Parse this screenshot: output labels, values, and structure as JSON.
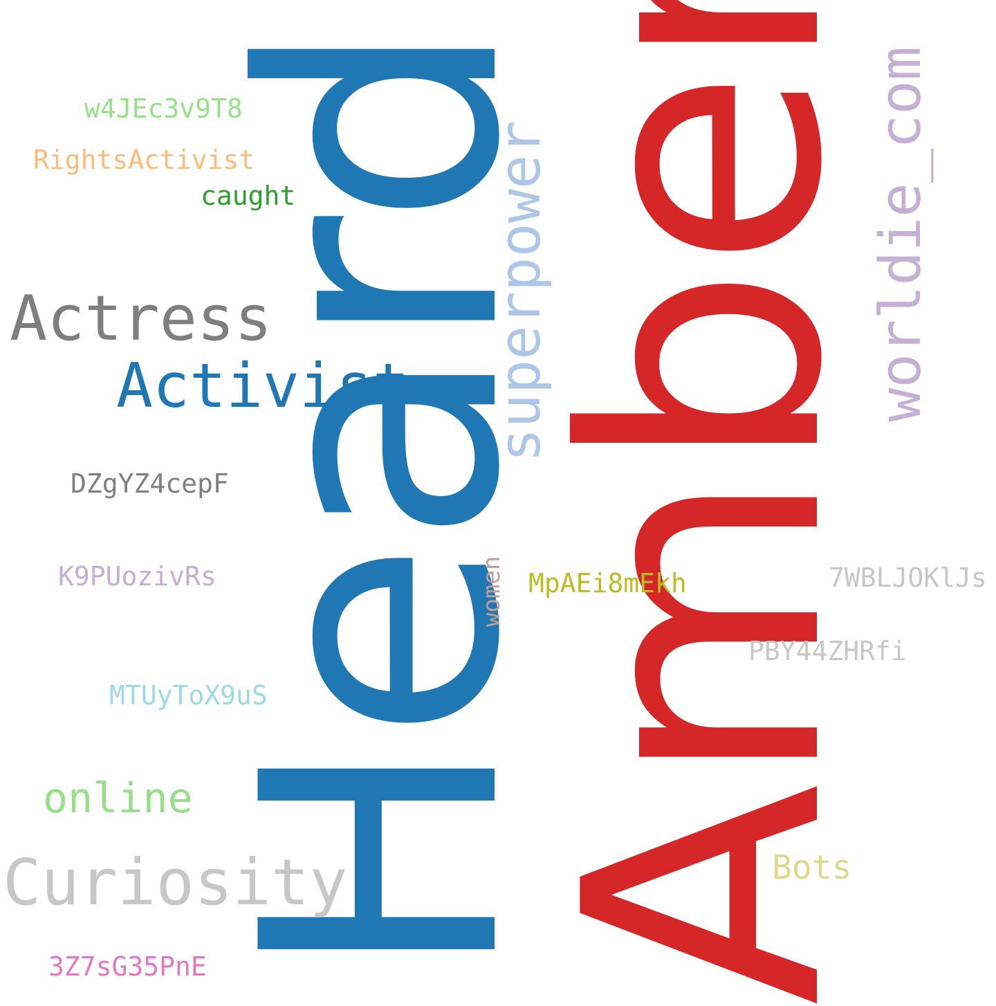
{
  "words": {
    "amber": {
      "text": "Amber",
      "color": "#d62728"
    },
    "heard": {
      "text": "Heard",
      "color": "#1f77b4"
    },
    "superpower": {
      "text": "superpower",
      "color": "#aec7e8"
    },
    "worldie_com": {
      "text": "worldie_com",
      "color": "#c5b0d5"
    },
    "actress": {
      "text": "Actress",
      "color": "#7f7f7f"
    },
    "activist": {
      "text": "Activist",
      "color": "#1f77b4"
    },
    "curiosity": {
      "text": "Curiosity",
      "color": "#c7c7c7"
    },
    "online": {
      "text": "online",
      "color": "#98df8a"
    },
    "w4jec3v9t8": {
      "text": "w4JEc3v9T8",
      "color": "#98df8a"
    },
    "rightsactivist": {
      "text": "RightsActivist",
      "color": "#ffbb78"
    },
    "caught": {
      "text": "caught",
      "color": "#2ca02c"
    },
    "dzgyz4cepf": {
      "text": "DZgYZ4cepF",
      "color": "#7f7f7f"
    },
    "k9puozivrs": {
      "text": "K9PUozivRs",
      "color": "#c5b0d5"
    },
    "women": {
      "text": "women",
      "color": "#c49c94"
    },
    "mpaei8mekh": {
      "text": "MpAEi8mEkh",
      "color": "#bcbd22"
    },
    "7wbljokljs": {
      "text": "7WBLJOKlJs",
      "color": "#c7c7c7"
    },
    "pby44zhrfi": {
      "text": "PBY44ZHRfi",
      "color": "#c7c7c7"
    },
    "mtuytox9us": {
      "text": "MTUyToX9uS",
      "color": "#9edae5"
    },
    "bots": {
      "text": "Bots",
      "color": "#dbdb8d"
    },
    "3z7sg35pne": {
      "text": "3Z7sG35PnE",
      "color": "#e377c2"
    }
  }
}
